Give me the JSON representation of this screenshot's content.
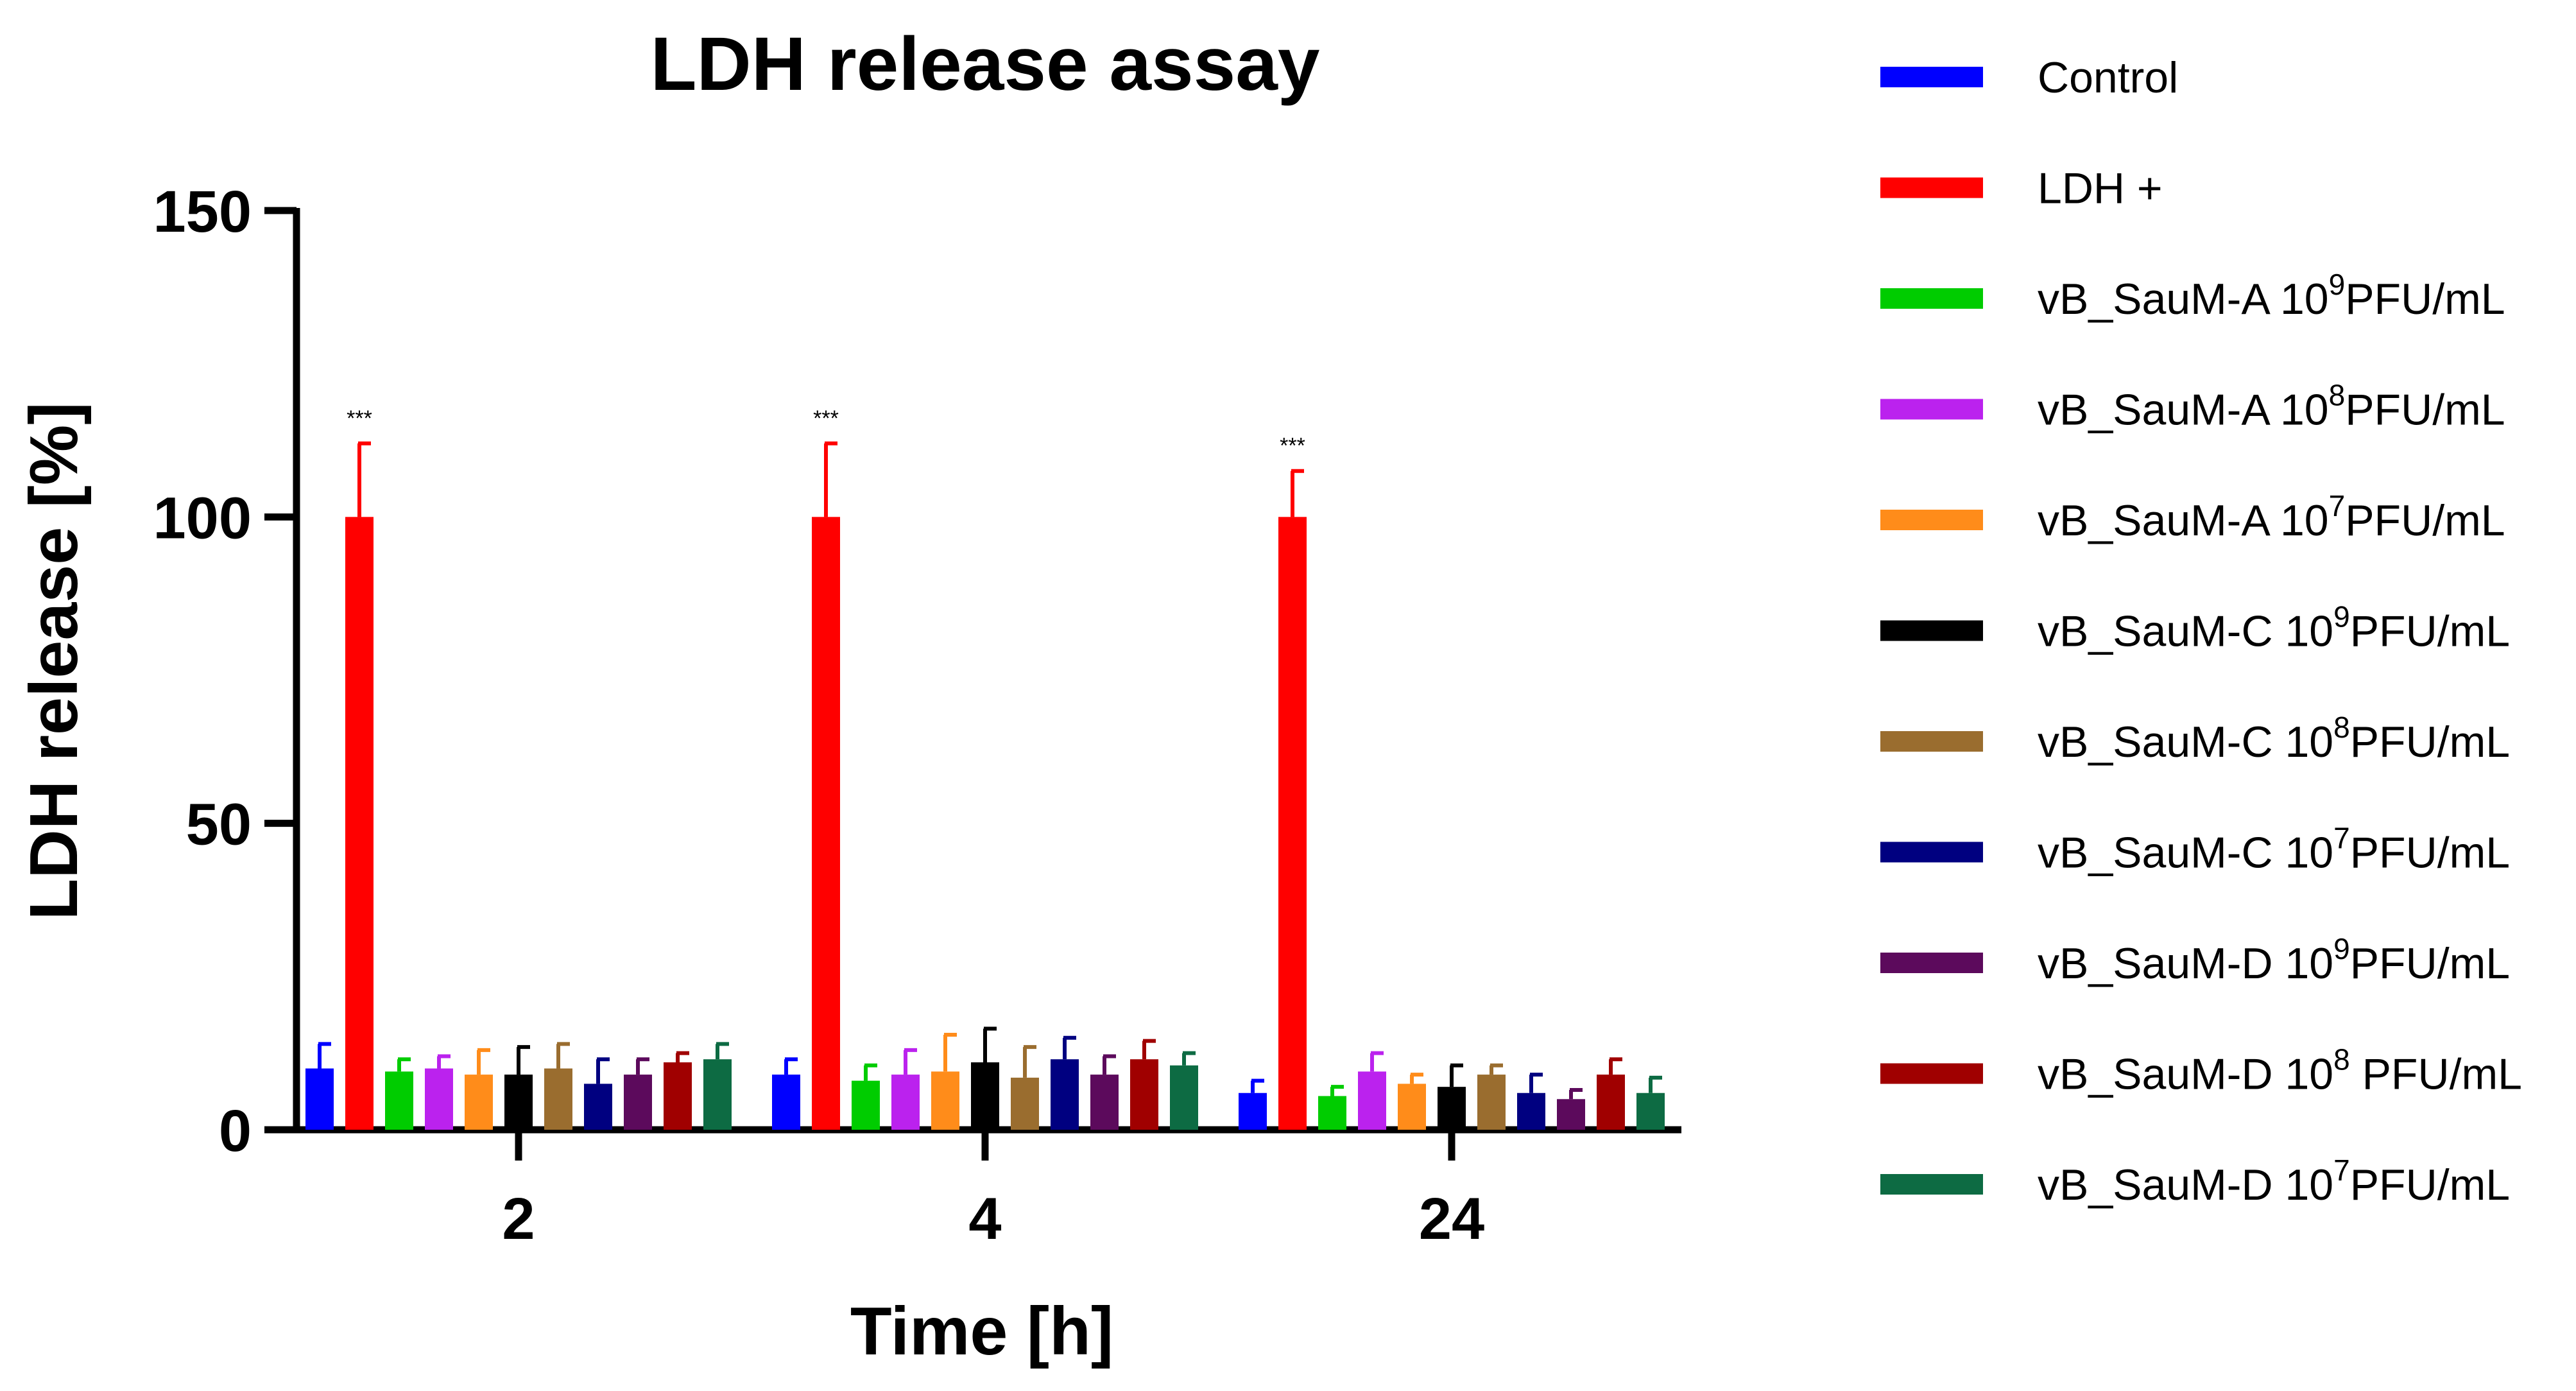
{
  "chart_data": {
    "type": "bar",
    "title": "LDH release assay",
    "xlabel": "Time [h]",
    "ylabel": "LDH release [%]",
    "ylim": [
      0,
      150
    ],
    "yticks": [
      "0",
      "50",
      "100",
      "150"
    ],
    "categories": [
      "2",
      "4",
      "24"
    ],
    "legend_position": "right",
    "grid": false,
    "series": [
      {
        "name": "Control",
        "color": "#0000ff",
        "values": [
          10,
          9,
          6
        ],
        "errors": [
          4,
          2.5,
          2
        ]
      },
      {
        "name": "LDH +",
        "color": "#ff0000",
        "values": [
          100,
          100,
          100
        ],
        "errors": [
          12,
          12,
          7.5
        ],
        "annotations": [
          "***",
          "***",
          "***"
        ]
      },
      {
        "name": "vB_SauM-A 10^9PFU/mL",
        "label_parts": [
          "vB_SauM-A 10",
          "9",
          "PFU/mL"
        ],
        "color": "#00cc00",
        "values": [
          9.5,
          8,
          5.5
        ],
        "errors": [
          2,
          2.5,
          1.5
        ]
      },
      {
        "name": "vB_SauM-A 10^8PFU/mL",
        "label_parts": [
          "vB_SauM-A 10",
          "8",
          "PFU/mL"
        ],
        "color": "#bb22ee",
        "values": [
          10,
          9,
          9.5
        ],
        "errors": [
          2,
          4,
          3
        ]
      },
      {
        "name": "vB_SauM-A 10^7PFU/mL",
        "label_parts": [
          "vB_SauM-A 10",
          "7",
          "PFU/mL"
        ],
        "color": "#ff8c1a",
        "values": [
          9,
          9.5,
          7.5
        ],
        "errors": [
          4,
          6,
          1.5
        ]
      },
      {
        "name": "vB_SauM-C 10^9PFU/mL",
        "label_parts": [
          "vB_SauM-C 10",
          "9",
          "PFU/mL"
        ],
        "color": "#000000",
        "values": [
          9,
          11,
          7
        ],
        "errors": [
          4.5,
          5.5,
          3.5
        ]
      },
      {
        "name": "vB_SauM-C 10^8PFU/mL",
        "label_parts": [
          "vB_SauM-C 10",
          "8",
          "PFU/mL"
        ],
        "color": "#9a6d2f",
        "values": [
          10,
          8.5,
          9
        ],
        "errors": [
          4,
          5,
          1.5
        ]
      },
      {
        "name": "vB_SauM-C 10^7PFU/mL",
        "label_parts": [
          "vB_SauM-C 10",
          "7",
          "PFU/mL"
        ],
        "color": "#000080",
        "values": [
          7.5,
          11.5,
          6
        ],
        "errors": [
          4,
          3.5,
          3
        ]
      },
      {
        "name": "vB_SauM-D 10^9PFU/mL",
        "label_parts": [
          "vB_SauM-D 10",
          "9",
          "PFU/mL"
        ],
        "color": "#5c0a5c",
        "values": [
          9,
          9,
          5
        ],
        "errors": [
          2.5,
          3,
          1.5
        ]
      },
      {
        "name": "vB_SauM-D 10^8 PFU/mL",
        "label_parts": [
          "vB_SauM-D 10",
          "8",
          " PFU/mL"
        ],
        "color": "#a00000",
        "values": [
          11,
          11.5,
          9
        ],
        "errors": [
          1.5,
          3,
          2.5
        ]
      },
      {
        "name": "vB_SauM-D 10^7PFU/mL",
        "label_parts": [
          "vB_SauM-D 10",
          "7",
          "PFU/mL"
        ],
        "color": "#0d6b43",
        "values": [
          11.5,
          10.5,
          6
        ],
        "errors": [
          2.5,
          2,
          2.5
        ]
      }
    ]
  }
}
